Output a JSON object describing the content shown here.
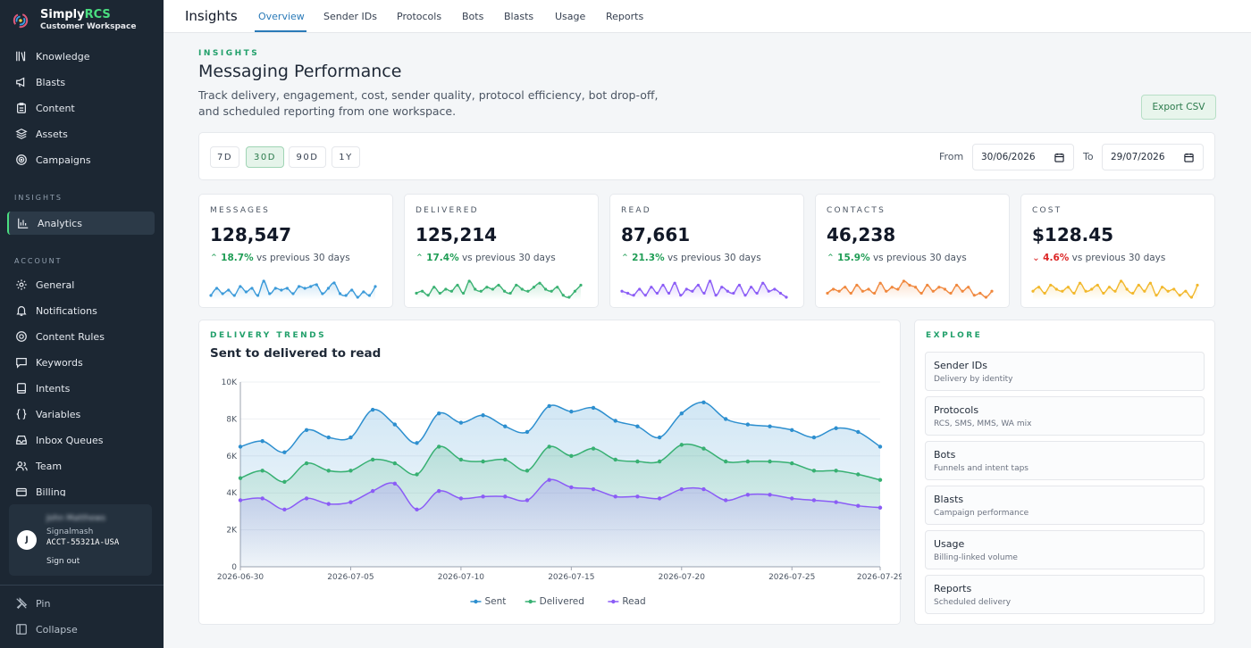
{
  "brand": {
    "name_prefix": "Simply",
    "name_accent": "RCS",
    "subtitle": "Customer Workspace"
  },
  "sidebar": {
    "items_top": [
      {
        "label": "Knowledge",
        "icon": "library-icon"
      },
      {
        "label": "Blasts",
        "icon": "megaphone-icon"
      },
      {
        "label": "Content",
        "icon": "clipboard-icon"
      },
      {
        "label": "Assets",
        "icon": "layers-icon"
      },
      {
        "label": "Campaigns",
        "icon": "target-icon"
      }
    ],
    "section_insights": "INSIGHTS",
    "items_insights": [
      {
        "label": "Analytics",
        "icon": "bar-chart-icon",
        "active": true
      }
    ],
    "section_account": "ACCOUNT",
    "items_account": [
      {
        "label": "General",
        "icon": "gear-icon"
      },
      {
        "label": "Notifications",
        "icon": "bell-icon"
      },
      {
        "label": "Content Rules",
        "icon": "circle-check-icon"
      },
      {
        "label": "Keywords",
        "icon": "message-icon"
      },
      {
        "label": "Intents",
        "icon": "book-icon"
      },
      {
        "label": "Variables",
        "icon": "braces-icon"
      },
      {
        "label": "Inbox Queues",
        "icon": "inbox-icon"
      },
      {
        "label": "Team",
        "icon": "users-icon"
      },
      {
        "label": "Billing",
        "icon": "card-icon"
      }
    ],
    "user": {
      "avatar": "J",
      "name": "John Matthews",
      "org": "Signalmash",
      "account": "ACCT-55321A-USA",
      "sign_out": "Sign out"
    },
    "bottom": [
      {
        "label": "Pin",
        "icon": "pin-icon"
      },
      {
        "label": "Collapse",
        "icon": "collapse-icon"
      }
    ]
  },
  "topbar": {
    "title": "Insights",
    "tabs": [
      "Overview",
      "Sender IDs",
      "Protocols",
      "Bots",
      "Blasts",
      "Usage",
      "Reports"
    ],
    "active_tab": "Overview"
  },
  "header": {
    "eyebrow": "INSIGHTS",
    "title": "Messaging Performance",
    "description": "Track delivery, engagement, cost, sender quality, protocol efficiency, bot drop-off, and scheduled reporting from one workspace.",
    "export_label": "Export CSV"
  },
  "filters": {
    "ranges": [
      "7D",
      "30D",
      "90D",
      "1Y"
    ],
    "active_range": "30D",
    "from_label": "From",
    "from_value": "30/06/2026",
    "to_label": "To",
    "to_value": "29/07/2026"
  },
  "kpis": [
    {
      "label": "MESSAGES",
      "value": "128,547",
      "delta": "18.7%",
      "direction": "up",
      "suffix": "vs previous 30 days",
      "color": "#3b9ad9"
    },
    {
      "label": "DELIVERED",
      "value": "125,214",
      "delta": "17.4%",
      "direction": "up",
      "suffix": "vs previous 30 days",
      "color": "#3bb273"
    },
    {
      "label": "READ",
      "value": "87,661",
      "delta": "21.3%",
      "direction": "up",
      "suffix": "vs previous 30 days",
      "color": "#8b5cf6"
    },
    {
      "label": "CONTACTS",
      "value": "46,238",
      "delta": "15.9%",
      "direction": "up",
      "suffix": "vs previous 30 days",
      "color": "#f0883e"
    },
    {
      "label": "COST",
      "value": "$128.45",
      "delta": "4.6%",
      "direction": "down",
      "suffix": "vs previous 30 days",
      "color": "#f2b82c"
    }
  ],
  "trend": {
    "eyebrow": "DELIVERY TRENDS",
    "title": "Sent to delivered to read"
  },
  "chart_data": {
    "type": "area",
    "x": [
      "2026-06-30",
      "2026-07-01",
      "2026-07-02",
      "2026-07-03",
      "2026-07-04",
      "2026-07-05",
      "2026-07-06",
      "2026-07-07",
      "2026-07-08",
      "2026-07-09",
      "2026-07-10",
      "2026-07-11",
      "2026-07-12",
      "2026-07-13",
      "2026-07-14",
      "2026-07-15",
      "2026-07-16",
      "2026-07-17",
      "2026-07-18",
      "2026-07-19",
      "2026-07-20",
      "2026-07-21",
      "2026-07-22",
      "2026-07-23",
      "2026-07-24",
      "2026-07-25",
      "2026-07-26",
      "2026-07-27",
      "2026-07-28",
      "2026-07-29"
    ],
    "xticks": [
      "2026-06-30",
      "2026-07-05",
      "2026-07-10",
      "2026-07-15",
      "2026-07-20",
      "2026-07-25",
      "2026-07-29"
    ],
    "yticks": [
      "0",
      "2K",
      "4K",
      "6K",
      "8K",
      "10K"
    ],
    "ylim": [
      0,
      10000
    ],
    "grid": true,
    "legend_position": "bottom",
    "series": [
      {
        "name": "Sent",
        "color": "#2d8fcf",
        "values": [
          6500,
          6800,
          6200,
          7400,
          7000,
          7000,
          8500,
          7700,
          6700,
          8300,
          7800,
          8200,
          7600,
          7300,
          8700,
          8400,
          8600,
          7900,
          7600,
          7000,
          8300,
          8900,
          8000,
          7700,
          7600,
          7400,
          7000,
          7500,
          7300,
          6500
        ]
      },
      {
        "name": "Delivered",
        "color": "#37b072",
        "values": [
          4800,
          5200,
          4600,
          5600,
          5200,
          5200,
          5800,
          5600,
          5000,
          6500,
          5800,
          5700,
          5800,
          5200,
          6500,
          6000,
          6400,
          5800,
          5700,
          5700,
          6600,
          6400,
          5700,
          5700,
          5700,
          5600,
          5200,
          5200,
          5000,
          4700
        ]
      },
      {
        "name": "Read",
        "color": "#8b5cf6",
        "values": [
          3600,
          3700,
          3100,
          3700,
          3400,
          3500,
          4100,
          4500,
          3100,
          4100,
          3700,
          3800,
          3800,
          3600,
          4700,
          4300,
          4200,
          3800,
          3800,
          3700,
          4200,
          4200,
          3600,
          3900,
          3900,
          3700,
          3600,
          3500,
          3300,
          3200
        ]
      }
    ]
  },
  "explore": {
    "eyebrow": "EXPLORE",
    "items": [
      {
        "title": "Sender IDs",
        "desc": "Delivery by identity"
      },
      {
        "title": "Protocols",
        "desc": "RCS, SMS, MMS, WA mix"
      },
      {
        "title": "Bots",
        "desc": "Funnels and intent taps"
      },
      {
        "title": "Blasts",
        "desc": "Campaign performance"
      },
      {
        "title": "Usage",
        "desc": "Billing-linked volume"
      },
      {
        "title": "Reports",
        "desc": "Scheduled delivery"
      }
    ]
  },
  "sparklines": {
    "messages": [
      5,
      9,
      6,
      8,
      5,
      10,
      7,
      9,
      5,
      13,
      6,
      9,
      8,
      9,
      6,
      10,
      9,
      10,
      11,
      6,
      9,
      12,
      6,
      5,
      8,
      4,
      7,
      5,
      10
    ],
    "delivered": [
      6,
      7,
      5,
      9,
      6,
      8,
      7,
      10,
      6,
      12,
      8,
      7,
      9,
      8,
      10,
      7,
      6,
      10,
      8,
      7,
      9,
      11,
      8,
      7,
      9,
      5,
      4,
      7,
      10
    ],
    "read": [
      7,
      6,
      5,
      8,
      5,
      9,
      6,
      10,
      6,
      11,
      5,
      8,
      7,
      10,
      6,
      12,
      5,
      9,
      7,
      6,
      10,
      5,
      9,
      6,
      11,
      7,
      8,
      6,
      4
    ],
    "contacts": [
      6,
      8,
      7,
      9,
      6,
      10,
      7,
      8,
      6,
      11,
      7,
      9,
      8,
      12,
      10,
      9,
      6,
      10,
      7,
      9,
      8,
      6,
      10,
      7,
      9,
      5,
      6,
      4,
      7
    ],
    "cost": [
      7,
      9,
      6,
      10,
      8,
      7,
      9,
      6,
      11,
      7,
      8,
      10,
      6,
      9,
      7,
      12,
      8,
      6,
      10,
      7,
      11,
      5,
      9,
      7,
      8,
      5,
      7,
      4,
      10
    ]
  }
}
